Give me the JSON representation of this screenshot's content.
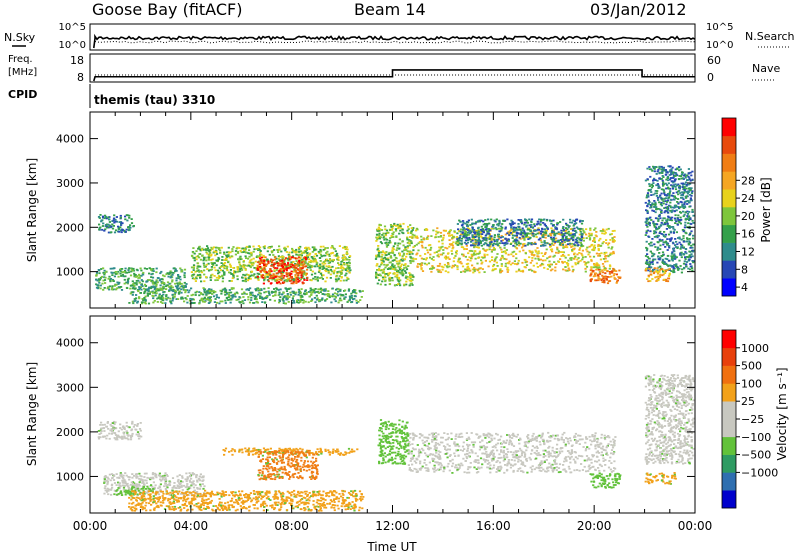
{
  "header": {
    "station": "Goose Bay (fitACF)",
    "beam": "Beam 14",
    "date": "03/Jan/2012"
  },
  "info_panels": {
    "noise_left_label": "N.Sky",
    "noise_right_label": "N.Search",
    "noise_left_ticks": [
      "10^5",
      "10^0"
    ],
    "noise_right_ticks": [
      "10^5",
      "10^0"
    ],
    "freq_label_1": "Freq.",
    "freq_label_2": "[MHz]",
    "freq_ticks": [
      "18",
      "8"
    ],
    "nave_label": "Nave",
    "nave_ticks": [
      "60",
      "0"
    ],
    "cpid_label": "CPID",
    "cpid_text": "themis (tau) 3310"
  },
  "chart_data": [
    {
      "type": "heatmap",
      "name": "power",
      "ylabel": "Slant Range [km]",
      "ylim": [
        180,
        4600
      ],
      "yticks": [
        1000,
        2000,
        3000,
        4000
      ],
      "xticks_hours": [
        0,
        4,
        8,
        12,
        16,
        20,
        24
      ],
      "colorbar": {
        "label": "Power [dB]",
        "ticks": [
          "4",
          "8",
          "12",
          "16",
          "20",
          "24",
          "28"
        ],
        "colors": [
          "#0000ff",
          "#2747b5",
          "#2f8c8c",
          "#34a04a",
          "#7ec63c",
          "#e8d21c",
          "#f5a623",
          "#f07d14",
          "#e84a0c",
          "#ff0000"
        ]
      },
      "patches": [
        {
          "t": [
            0.3,
            1.7
          ],
          "r": [
            1900,
            2300
          ],
          "level": 2
        },
        {
          "t": [
            0.2,
            3.8
          ],
          "r": [
            600,
            1100
          ],
          "level": 3
        },
        {
          "t": [
            4.0,
            10.3
          ],
          "r": [
            800,
            1600
          ],
          "level": 4
        },
        {
          "t": [
            6.6,
            8.6
          ],
          "r": [
            750,
            1350
          ],
          "level": 8
        },
        {
          "t": [
            1.5,
            10.8
          ],
          "r": [
            300,
            650
          ],
          "level": 3
        },
        {
          "t": [
            11.3,
            12.8
          ],
          "r": [
            700,
            2100
          ],
          "level": 4
        },
        {
          "t": [
            12.8,
            20.8
          ],
          "r": [
            1000,
            2000
          ],
          "level": 5
        },
        {
          "t": [
            14.5,
            19.5
          ],
          "r": [
            1600,
            2200
          ],
          "level": 2
        },
        {
          "t": [
            19.8,
            21.0
          ],
          "r": [
            750,
            1100
          ],
          "level": 7
        },
        {
          "t": [
            22.0,
            23.9
          ],
          "r": [
            1000,
            3400
          ],
          "level": 2
        },
        {
          "t": [
            22.0,
            23.0
          ],
          "r": [
            800,
            1100
          ],
          "level": 6
        }
      ]
    },
    {
      "type": "heatmap",
      "name": "velocity",
      "ylabel": "Slant Range [km]",
      "xlabel": "Time UT",
      "ylim": [
        180,
        4600
      ],
      "yticks": [
        1000,
        2000,
        3000,
        4000
      ],
      "xticks": [
        "00:00",
        "04:00",
        "08:00",
        "12:00",
        "16:00",
        "20:00",
        "00:00"
      ],
      "colorbar": {
        "label": "Velocity [m s⁻¹]",
        "ticks": [
          "1000",
          "500",
          "100",
          "25",
          "−25",
          "−100",
          "−500",
          "−1000"
        ],
        "colors": [
          "#0000cc",
          "#2f6fb0",
          "#2e9b62",
          "#62c23a",
          "#c8c8c0",
          "#c8c8c0",
          "#f2a11a",
          "#f07010",
          "#e8400c",
          "#ff0000"
        ]
      },
      "patches": [
        {
          "t": [
            0.3,
            2.0
          ],
          "r": [
            1850,
            2250
          ],
          "color": "#c8c8c0"
        },
        {
          "t": [
            0.5,
            4.5
          ],
          "r": [
            600,
            1100
          ],
          "color": "#c8c8c0"
        },
        {
          "t": [
            1.0,
            2.5
          ],
          "r": [
            600,
            800
          ],
          "color": "#62c23a"
        },
        {
          "t": [
            5.2,
            10.6
          ],
          "r": [
            1500,
            1650
          ],
          "color": "#f2a11a"
        },
        {
          "t": [
            6.6,
            9.0
          ],
          "r": [
            950,
            1600
          ],
          "color": "#f07d14"
        },
        {
          "t": [
            1.5,
            10.8
          ],
          "r": [
            250,
            700
          ],
          "color": "#f2a11a"
        },
        {
          "t": [
            11.4,
            12.6
          ],
          "r": [
            1300,
            2300
          ],
          "color": "#62c23a"
        },
        {
          "t": [
            12.6,
            20.8
          ],
          "r": [
            1100,
            2000
          ],
          "color": "#c8c8c0"
        },
        {
          "t": [
            19.8,
            21.0
          ],
          "r": [
            750,
            1100
          ],
          "color": "#62c23a"
        },
        {
          "t": [
            22.0,
            23.9
          ],
          "r": [
            1300,
            3300
          ],
          "color": "#c8c8c0"
        },
        {
          "t": [
            22.0,
            23.2
          ],
          "r": [
            850,
            1100
          ],
          "color": "#f2a11a"
        }
      ]
    }
  ]
}
